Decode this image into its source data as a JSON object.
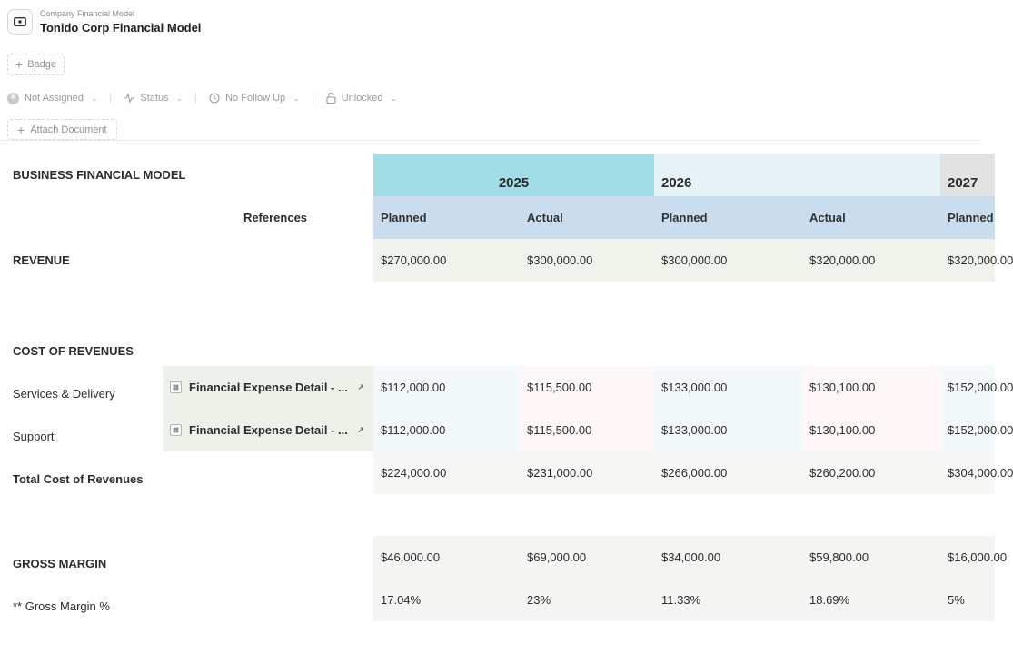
{
  "header": {
    "breadcrumb": "Company Financial Model",
    "title": "Tonido Corp Financial Model",
    "badge_label": "Badge",
    "attach_label": "Attach Document"
  },
  "properties": {
    "assignee": "Not Assigned",
    "status": "Status",
    "follow_up": "No Follow Up",
    "lock": "Unlocked"
  },
  "sheet": {
    "title": "BUSINESS FINANCIAL MODEL",
    "references_header": "References",
    "years": [
      "2025",
      "2026",
      "2027"
    ],
    "planned_label": "Planned",
    "actual_label": "Actual",
    "revenue": {
      "label": "REVENUE",
      "values": [
        "$270,000.00",
        "$300,000.00",
        "$300,000.00",
        "$320,000.00",
        "$320,000.00"
      ]
    },
    "cost_of_revenues": {
      "label": "COST OF REVENUES",
      "rows": [
        {
          "label": "Services & Delivery",
          "reference": "Financial Expense Detail - ...",
          "values": [
            "$112,000.00",
            "$115,500.00",
            "$133,000.00",
            "$130,100.00",
            "$152,000.00"
          ]
        },
        {
          "label": "Support",
          "reference": "Financial Expense Detail - ...",
          "values": [
            "$112,000.00",
            "$115,500.00",
            "$133,000.00",
            "$130,100.00",
            "$152,000.00"
          ]
        }
      ],
      "total": {
        "label": "Total Cost of Revenues",
        "values": [
          "$224,000.00",
          "$231,000.00",
          "$266,000.00",
          "$260,200.00",
          "$304,000.00"
        ]
      }
    },
    "gross_margin": {
      "label": "GROSS MARGIN",
      "values": [
        "$46,000.00",
        "$69,000.00",
        "$34,000.00",
        "$59,800.00",
        "$16,000.00"
      ],
      "pct_label": "** Gross Margin %",
      "pct_values": [
        "17.04%",
        "23%",
        "11.33%",
        "18.69%",
        "5%"
      ]
    }
  },
  "colors": {
    "year_2025": "#a0dde6",
    "year_2026": "#e8f3f8",
    "year_2027": "#e2e2e2",
    "subheader": "#c9ddef",
    "revenue_row": "#eef3ec",
    "reference_cell": "#ecf1e9",
    "planned_cost": "#f3f9fb",
    "actual_cost": "#fdf8f7",
    "total_row": "#f7f7f5",
    "margin_row": "#f4f5f2"
  }
}
